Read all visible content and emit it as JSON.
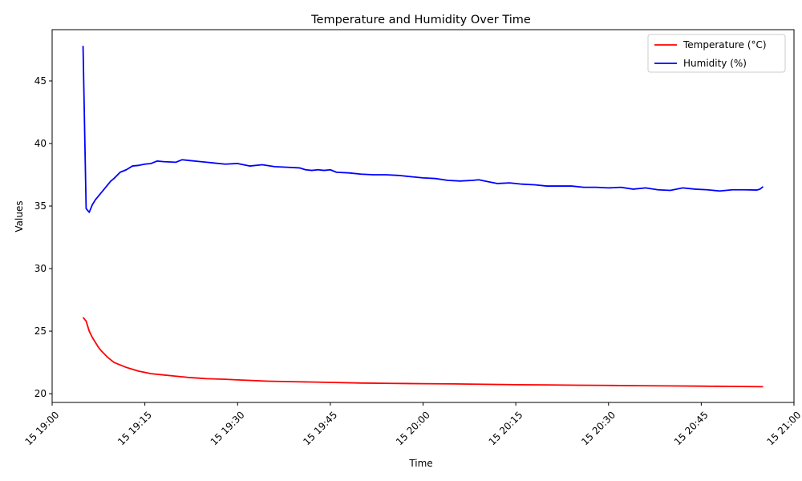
{
  "chart_data": {
    "type": "line",
    "title": "Temperature and Humidity Over Time",
    "xlabel": "Time",
    "ylabel": "Values",
    "xlim": [
      "2000-01-15 19:00",
      "2000-01-15 21:00"
    ],
    "ylim": [
      19.3,
      49.1
    ],
    "x_ticks": [
      {
        "value": "2000-01-15 19:00",
        "label": "15 19:00"
      },
      {
        "value": "2000-01-15 19:15",
        "label": "15 19:15"
      },
      {
        "value": "2000-01-15 19:30",
        "label": "15 19:30"
      },
      {
        "value": "2000-01-15 19:45",
        "label": "15 19:45"
      },
      {
        "value": "2000-01-15 20:00",
        "label": "15 20:00"
      },
      {
        "value": "2000-01-15 20:15",
        "label": "15 20:15"
      },
      {
        "value": "2000-01-15 20:30",
        "label": "15 20:30"
      },
      {
        "value": "2000-01-15 20:45",
        "label": "15 20:45"
      },
      {
        "value": "2000-01-15 21:00",
        "label": "15 21:00"
      }
    ],
    "y_ticks": [
      20,
      25,
      30,
      35,
      40,
      45
    ],
    "grid": false,
    "legend": "top-right",
    "series": [
      {
        "name": "Temperature (°C)",
        "color": "#ff0000",
        "points": [
          [
            "2000-01-15 19:05",
            26.1
          ],
          [
            "2000-01-15 19:05:30",
            25.8
          ],
          [
            "2000-01-15 19:06",
            25.0
          ],
          [
            "2000-01-15 19:06:30",
            24.5
          ],
          [
            "2000-01-15 19:07",
            24.1
          ],
          [
            "2000-01-15 19:07:30",
            23.7
          ],
          [
            "2000-01-15 19:08",
            23.4
          ],
          [
            "2000-01-15 19:09",
            22.9
          ],
          [
            "2000-01-15 19:10",
            22.5
          ],
          [
            "2000-01-15 19:11",
            22.3
          ],
          [
            "2000-01-15 19:12",
            22.1
          ],
          [
            "2000-01-15 19:13",
            21.95
          ],
          [
            "2000-01-15 19:14",
            21.8
          ],
          [
            "2000-01-15 19:15",
            21.7
          ],
          [
            "2000-01-15 19:16",
            21.6
          ],
          [
            "2000-01-15 19:18",
            21.5
          ],
          [
            "2000-01-15 19:20",
            21.4
          ],
          [
            "2000-01-15 19:22",
            21.3
          ],
          [
            "2000-01-15 19:25",
            21.2
          ],
          [
            "2000-01-15 19:28",
            21.15
          ],
          [
            "2000-01-15 19:30",
            21.1
          ],
          [
            "2000-01-15 19:35",
            21.0
          ],
          [
            "2000-01-15 19:40",
            20.95
          ],
          [
            "2000-01-15 19:45",
            20.9
          ],
          [
            "2000-01-15 19:50",
            20.85
          ],
          [
            "2000-01-15 19:55",
            20.82
          ],
          [
            "2000-01-15 20:00",
            20.8
          ],
          [
            "2000-01-15 20:05",
            20.78
          ],
          [
            "2000-01-15 20:10",
            20.75
          ],
          [
            "2000-01-15 20:15",
            20.72
          ],
          [
            "2000-01-15 20:20",
            20.7
          ],
          [
            "2000-01-15 20:25",
            20.68
          ],
          [
            "2000-01-15 20:30",
            20.66
          ],
          [
            "2000-01-15 20:35",
            20.64
          ],
          [
            "2000-01-15 20:40",
            20.62
          ],
          [
            "2000-01-15 20:45",
            20.6
          ],
          [
            "2000-01-15 20:50",
            20.58
          ],
          [
            "2000-01-15 20:55",
            20.56
          ]
        ]
      },
      {
        "name": "Humidity (%)",
        "color": "#0000ff",
        "points": [
          [
            "2000-01-15 19:05",
            47.8
          ],
          [
            "2000-01-15 19:05:30",
            34.8
          ],
          [
            "2000-01-15 19:06",
            34.5
          ],
          [
            "2000-01-15 19:06:30",
            35.1
          ],
          [
            "2000-01-15 19:07",
            35.5
          ],
          [
            "2000-01-15 19:08",
            36.1
          ],
          [
            "2000-01-15 19:09",
            36.7
          ],
          [
            "2000-01-15 19:09:30",
            37.0
          ],
          [
            "2000-01-15 19:10",
            37.2
          ],
          [
            "2000-01-15 19:11",
            37.7
          ],
          [
            "2000-01-15 19:12",
            37.9
          ],
          [
            "2000-01-15 19:13",
            38.2
          ],
          [
            "2000-01-15 19:14",
            38.25
          ],
          [
            "2000-01-15 19:15",
            38.35
          ],
          [
            "2000-01-15 19:16",
            38.4
          ],
          [
            "2000-01-15 19:17",
            38.6
          ],
          [
            "2000-01-15 19:18",
            38.55
          ],
          [
            "2000-01-15 19:20",
            38.5
          ],
          [
            "2000-01-15 19:21",
            38.7
          ],
          [
            "2000-01-15 19:22",
            38.65
          ],
          [
            "2000-01-15 19:24",
            38.55
          ],
          [
            "2000-01-15 19:25",
            38.5
          ],
          [
            "2000-01-15 19:26",
            38.45
          ],
          [
            "2000-01-15 19:28",
            38.35
          ],
          [
            "2000-01-15 19:30",
            38.4
          ],
          [
            "2000-01-15 19:32",
            38.2
          ],
          [
            "2000-01-15 19:34",
            38.3
          ],
          [
            "2000-01-15 19:36",
            38.15
          ],
          [
            "2000-01-15 19:38",
            38.1
          ],
          [
            "2000-01-15 19:40",
            38.05
          ],
          [
            "2000-01-15 19:41",
            37.9
          ],
          [
            "2000-01-15 19:42",
            37.85
          ],
          [
            "2000-01-15 19:43",
            37.9
          ],
          [
            "2000-01-15 19:44",
            37.85
          ],
          [
            "2000-01-15 19:45",
            37.9
          ],
          [
            "2000-01-15 19:46",
            37.7
          ],
          [
            "2000-01-15 19:48",
            37.65
          ],
          [
            "2000-01-15 19:50",
            37.55
          ],
          [
            "2000-01-15 19:52",
            37.5
          ],
          [
            "2000-01-15 19:54",
            37.5
          ],
          [
            "2000-01-15 19:56",
            37.45
          ],
          [
            "2000-01-15 19:58",
            37.35
          ],
          [
            "2000-01-15 20:00",
            37.25
          ],
          [
            "2000-01-15 20:02",
            37.2
          ],
          [
            "2000-01-15 20:04",
            37.05
          ],
          [
            "2000-01-15 20:06",
            37.0
          ],
          [
            "2000-01-15 20:08",
            37.05
          ],
          [
            "2000-01-15 20:09",
            37.1
          ],
          [
            "2000-01-15 20:11",
            36.9
          ],
          [
            "2000-01-15 20:12",
            36.8
          ],
          [
            "2000-01-15 20:14",
            36.85
          ],
          [
            "2000-01-15 20:16",
            36.75
          ],
          [
            "2000-01-15 20:18",
            36.7
          ],
          [
            "2000-01-15 20:20",
            36.6
          ],
          [
            "2000-01-15 20:22",
            36.6
          ],
          [
            "2000-01-15 20:24",
            36.6
          ],
          [
            "2000-01-15 20:26",
            36.5
          ],
          [
            "2000-01-15 20:28",
            36.5
          ],
          [
            "2000-01-15 20:30",
            36.45
          ],
          [
            "2000-01-15 20:32",
            36.5
          ],
          [
            "2000-01-15 20:34",
            36.35
          ],
          [
            "2000-01-15 20:36",
            36.45
          ],
          [
            "2000-01-15 20:38",
            36.3
          ],
          [
            "2000-01-15 20:40",
            36.25
          ],
          [
            "2000-01-15 20:42",
            36.45
          ],
          [
            "2000-01-15 20:44",
            36.35
          ],
          [
            "2000-01-15 20:46",
            36.3
          ],
          [
            "2000-01-15 20:48",
            36.2
          ],
          [
            "2000-01-15 20:50",
            36.3
          ],
          [
            "2000-01-15 20:52",
            36.3
          ],
          [
            "2000-01-15 20:54",
            36.28
          ],
          [
            "2000-01-15 20:54:30",
            36.35
          ],
          [
            "2000-01-15 20:55",
            36.55
          ]
        ]
      }
    ]
  }
}
